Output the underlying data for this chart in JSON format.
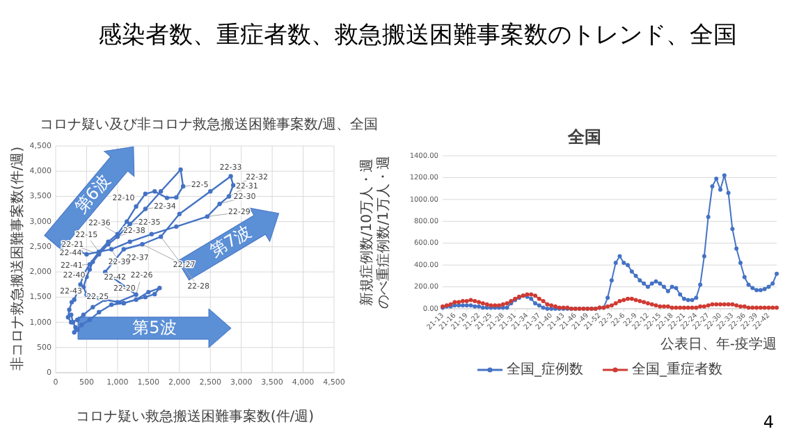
{
  "chart_data": [
    {
      "type": "other",
      "title": "感染者数、重症者数、救急搬送困難事案数のトレンド、全国",
      "annotations": [
        "4"
      ]
    },
    {
      "type": "line",
      "title": "コロナ疑い及び非コロナ救急搬送困難事案数/週、全国",
      "xlabel": "コロナ疑い救急搬送困難事案数(件/週)",
      "ylabel": "非コロナ救急搬送困難事案数(件/週)",
      "xlim": [
        0,
        4500
      ],
      "ylim": [
        0,
        4500
      ],
      "xticks": [
        0,
        500,
        {
          "value": 1000,
          "label": "1,000"
        },
        {
          "value": 1500,
          "label": "1,500"
        },
        {
          "value": 2000,
          "label": "2,000"
        },
        {
          "value": 2500,
          "label": "2,500"
        },
        {
          "value": 3000,
          "label": "3,000"
        },
        {
          "value": 3500,
          "label": "3,500"
        },
        {
          "value": 4000,
          "label": "4,000"
        },
        {
          "value": 4500,
          "label": "4,500"
        }
      ],
      "yticks": [
        0,
        500,
        {
          "value": 1000,
          "label": "1,000"
        },
        {
          "value": 1500,
          "label": "1,500"
        },
        {
          "value": 2000,
          "label": "2,000"
        },
        {
          "value": 2500,
          "label": "2,500"
        },
        {
          "value": 3000,
          "label": "3,000"
        },
        {
          "value": 3500,
          "label": "3,500"
        },
        {
          "value": 4000,
          "label": "4,000"
        },
        {
          "value": 4500,
          "label": "4,500"
        }
      ],
      "grid": true,
      "marker": "circle",
      "color": "#4472c4",
      "x": [
        250,
        280,
        320,
        300,
        350,
        420,
        550,
        700,
        900,
        1100,
        1300,
        1500,
        1680,
        1600,
        1450,
        1100,
        800,
        600,
        450,
        350,
        250,
        200,
        220,
        260,
        300,
        350,
        400,
        450,
        550,
        700,
        850,
        1000,
        1150,
        1300,
        1450,
        1600,
        1800,
        1950,
        2060,
        2020,
        1700,
        1450,
        1200,
        1000,
        850,
        700,
        600,
        550,
        500,
        450,
        500,
        700,
        1000,
        1300,
        800,
        1100,
        1400,
        1700,
        2000,
        2500,
        2830,
        2870,
        2800,
        2650,
        2450,
        1950,
        1550,
        1200,
        900,
        700,
        500,
        400
      ],
      "values": [
        1150,
        1000,
        900,
        800,
        850,
        950,
        1050,
        1200,
        1350,
        1380,
        1450,
        1600,
        1680,
        1560,
        1500,
        1380,
        1450,
        1300,
        1150,
        1050,
        1000,
        1100,
        1250,
        1400,
        1450,
        1600,
        1750,
        1950,
        2150,
        2400,
        2600,
        2750,
        3000,
        3300,
        3550,
        3600,
        3470,
        3480,
        3700,
        4030,
        3600,
        3250,
        2950,
        2700,
        2550,
        2350,
        2200,
        2050,
        1900,
        1700,
        1550,
        1480,
        1400,
        1550,
        2000,
        2450,
        2550,
        2700,
        3150,
        3600,
        3900,
        3720,
        3500,
        3350,
        3100,
        2900,
        2750,
        2600,
        2450,
        2400,
        2350,
        2400
      ],
      "annotations": [
        "第6波",
        "第7波",
        "第5波",
        {
          "text": "22-33",
          "x": 2830,
          "y": 3900
        },
        {
          "text": "22-32",
          "x": 2870,
          "y": 3720
        },
        {
          "text": "22-31",
          "x": 2800,
          "y": 3500
        },
        {
          "text": "22-30",
          "x": 2650,
          "y": 3350
        },
        {
          "text": "22-29",
          "x": 2450,
          "y": 3100
        },
        {
          "text": "22-5",
          "x": 2060,
          "y": 3700
        },
        {
          "text": "22-10",
          "x": 1300,
          "y": 3300
        },
        {
          "text": "22-34",
          "x": 1450,
          "y": 3250
        },
        {
          "text": "22-36",
          "x": 1000,
          "y": 2750
        },
        {
          "text": "22-35",
          "x": 1200,
          "y": 2950
        },
        {
          "text": "22-38",
          "x": 1000,
          "y": 2700
        },
        {
          "text": "22-15",
          "x": 700,
          "y": 2400
        },
        {
          "text": "22-21",
          "x": 700,
          "y": 2350
        },
        {
          "text": "22-44",
          "x": 400,
          "y": 2400
        },
        {
          "text": "22-37",
          "x": 1100,
          "y": 2450
        },
        {
          "text": "22-28",
          "x": 1700,
          "y": 2700
        },
        {
          "text": "22-41",
          "x": 550,
          "y": 2150
        },
        {
          "text": "22-39",
          "x": 850,
          "y": 2550
        },
        {
          "text": "22-40",
          "x": 500,
          "y": 1900
        },
        {
          "text": "22-42",
          "x": 800,
          "y": 2000
        },
        {
          "text": "22-26",
          "x": 1300,
          "y": 1550
        },
        {
          "text": "22-27",
          "x": 1400,
          "y": 2550
        },
        {
          "text": "22-20",
          "x": 1000,
          "y": 1400
        },
        {
          "text": "22-43",
          "x": 450,
          "y": 1700
        },
        {
          "text": "22-25",
          "x": 700,
          "y": 1480
        }
      ]
    },
    {
      "type": "line",
      "title": "全国",
      "xlabel": "公表日、年-疫学週",
      "ylabel": "新規症例数/10万人・週のべ重症例数/1万人・週",
      "ylim": [
        0,
        1400
      ],
      "yticks": [
        {
          "value": 0,
          "label": "0.00"
        },
        {
          "value": 200,
          "label": "200.00"
        },
        {
          "value": 400,
          "label": "400.00"
        },
        {
          "value": 600,
          "label": "600.00"
        },
        {
          "value": 800,
          "label": "800.00"
        },
        {
          "value": 1000,
          "label": "1000.00"
        },
        {
          "value": 1200,
          "label": "1200.00"
        },
        {
          "value": 1400,
          "label": "1400.00"
        }
      ],
      "grid": "y",
      "legend": "bottom",
      "marker": "circle",
      "categories": [
        "21-13",
        null,
        null,
        "21-16",
        null,
        null,
        "21-19",
        null,
        null,
        "21-22",
        null,
        null,
        "21-25",
        null,
        null,
        "21-28",
        null,
        null,
        "21-31",
        null,
        null,
        "21-34",
        null,
        null,
        "21-37",
        null,
        null,
        "21-40",
        null,
        null,
        "21-43",
        null,
        null,
        "21-46",
        null,
        null,
        "21-49",
        null,
        null,
        "21-52",
        null,
        null,
        "22-3",
        null,
        null,
        "22-6",
        null,
        null,
        "22-9",
        null,
        null,
        "22-12",
        null,
        null,
        "22-15",
        null,
        null,
        "22-18",
        null,
        null,
        "22-21",
        null,
        null,
        "22-24",
        null,
        null,
        "22-27",
        null,
        null,
        "22-30",
        null,
        null,
        "22-33",
        null,
        null,
        "22-36",
        null,
        null,
        "22-39",
        null,
        null,
        "22-42",
        null,
        null
      ],
      "series": [
        {
          "name": "全国_症例数",
          "color": "#4472c4",
          "values": [
            10,
            20,
            20,
            30,
            30,
            30,
            30,
            30,
            20,
            20,
            10,
            10,
            10,
            10,
            10,
            10,
            10,
            50,
            80,
            100,
            120,
            110,
            90,
            50,
            30,
            10,
            0,
            0,
            0,
            0,
            0,
            0,
            0,
            0,
            0,
            0,
            0,
            0,
            0,
            10,
            10,
            100,
            260,
            420,
            480,
            420,
            400,
            340,
            300,
            260,
            230,
            200,
            230,
            250,
            230,
            200,
            160,
            200,
            190,
            130,
            90,
            80,
            80,
            100,
            220,
            480,
            840,
            1120,
            1190,
            1090,
            1220,
            1060,
            730,
            550,
            420,
            290,
            220,
            190,
            170,
            170,
            180,
            200,
            230,
            320
          ]
        },
        {
          "name": "全国_重症者数",
          "color": "#d03a32",
          "values": [
            20,
            30,
            40,
            60,
            60,
            70,
            70,
            80,
            70,
            60,
            50,
            40,
            30,
            30,
            30,
            40,
            50,
            70,
            90,
            110,
            120,
            130,
            130,
            120,
            90,
            70,
            40,
            30,
            20,
            10,
            10,
            10,
            0,
            0,
            0,
            0,
            0,
            0,
            0,
            10,
            10,
            20,
            30,
            50,
            70,
            80,
            90,
            90,
            80,
            70,
            60,
            50,
            40,
            30,
            20,
            20,
            20,
            10,
            10,
            10,
            10,
            10,
            10,
            10,
            20,
            20,
            30,
            40,
            40,
            40,
            40,
            40,
            40,
            30,
            20,
            20,
            10,
            10,
            10,
            10,
            10,
            10,
            10,
            10
          ]
        }
      ]
    }
  ]
}
